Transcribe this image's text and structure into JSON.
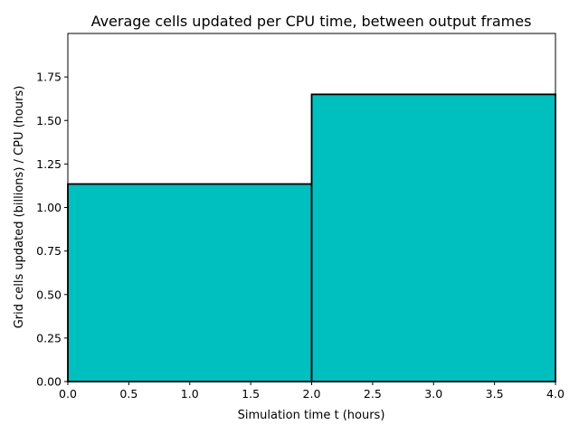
{
  "chart_data": {
    "type": "bar",
    "title": "Average cells updated per CPU time, between output frames",
    "xlabel": "Simulation time t (hours)",
    "ylabel": "Grid cells updated (billions) / CPU (hours)",
    "xlim": [
      0.0,
      4.0
    ],
    "ylim": [
      0.0,
      2.0
    ],
    "xticks": [
      "0.0",
      "0.5",
      "1.0",
      "1.5",
      "2.0",
      "2.5",
      "3.0",
      "3.5",
      "4.0"
    ],
    "yticks": [
      "0.00",
      "0.25",
      "0.50",
      "0.75",
      "1.00",
      "1.25",
      "1.50",
      "1.75"
    ],
    "bins": [
      {
        "x_start": 0.0,
        "x_end": 2.0,
        "value": 1.135
      },
      {
        "x_start": 2.0,
        "x_end": 4.0,
        "value": 1.65
      }
    ],
    "grid": false,
    "colors": {
      "bar_fill": "#00bfbf",
      "bar_edge": "#000000"
    }
  }
}
